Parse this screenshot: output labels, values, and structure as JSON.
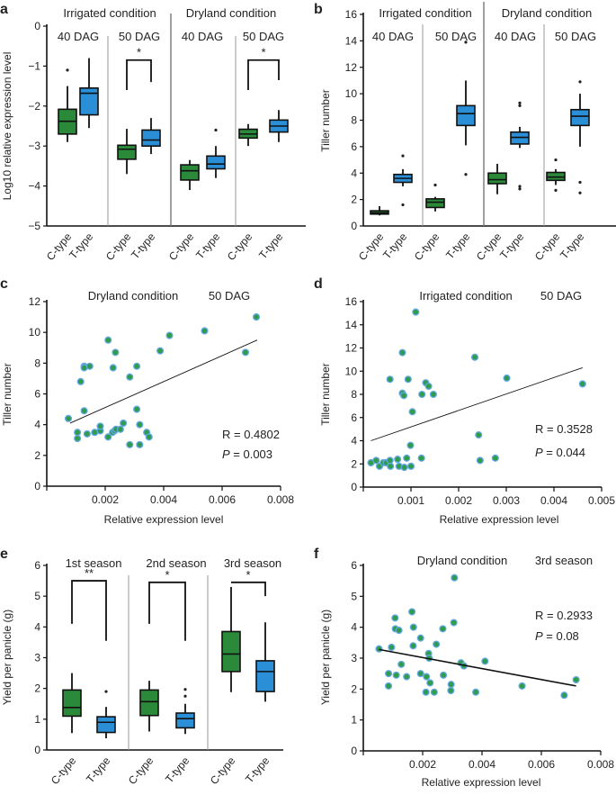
{
  "colors": {
    "c_type": "#2b8a3a",
    "t_type": "#2a8fd6",
    "point_fill": "#2e9c48",
    "point_edge": "#64a8e6"
  },
  "chart_data": [
    {
      "panel": "a",
      "type": "box",
      "ylabel": "Log10 relative expression level",
      "ylim": [
        -5,
        0
      ],
      "yticks": [
        0,
        -1,
        -2,
        -3,
        -4,
        -5
      ],
      "conditions": [
        "Irrigated condition",
        "Dryland condition"
      ],
      "stages": [
        "40 DAG",
        "50 DAG",
        "40 DAG",
        "50 DAG"
      ],
      "categories": [
        "C-type",
        "T-type",
        "C-type",
        "T-type",
        "C-type",
        "T-type",
        "C-type",
        "T-type"
      ],
      "boxes": [
        {
          "type": "C",
          "whisker_low": -2.9,
          "q1": -2.7,
          "median": -2.38,
          "q3": -2.08,
          "whisker_high": -1.5,
          "outliers": [
            -1.1
          ]
        },
        {
          "type": "T",
          "whisker_low": -2.55,
          "q1": -2.22,
          "median": -1.68,
          "q3": -1.55,
          "whisker_high": -0.8,
          "outliers": []
        },
        {
          "type": "C",
          "whisker_low": -3.7,
          "q1": -3.33,
          "median": -3.08,
          "q3": -2.98,
          "whisker_high": -2.57,
          "outliers": []
        },
        {
          "type": "T",
          "whisker_low": -3.2,
          "q1": -3.0,
          "median": -2.85,
          "q3": -2.6,
          "whisker_high": -2.3,
          "outliers": []
        },
        {
          "type": "C",
          "whisker_low": -4.1,
          "q1": -3.85,
          "median": -3.62,
          "q3": -3.47,
          "whisker_high": -3.35,
          "outliers": []
        },
        {
          "type": "T",
          "whisker_low": -3.8,
          "q1": -3.57,
          "median": -3.45,
          "q3": -3.25,
          "whisker_high": -3.0,
          "outliers": [
            -2.6
          ]
        },
        {
          "type": "C",
          "whisker_low": -3.0,
          "q1": -2.8,
          "median": -2.7,
          "q3": -2.58,
          "whisker_high": -2.45,
          "outliers": []
        },
        {
          "type": "T",
          "whisker_low": -2.9,
          "q1": -2.65,
          "median": -2.5,
          "q3": -2.35,
          "whisker_high": -2.1,
          "outliers": []
        }
      ],
      "significance": [
        {
          "pair": [
            2,
            3
          ],
          "label": "*",
          "top": -0.85,
          "left_end": -1.6,
          "right_end": -1.4
        },
        {
          "pair": [
            6,
            7
          ],
          "label": "*",
          "top": -0.85,
          "left_end": -1.6,
          "right_end": -1.35
        }
      ]
    },
    {
      "panel": "b",
      "type": "box",
      "ylabel": "Tiller number",
      "ylim": [
        0,
        16
      ],
      "yticks": [
        0,
        2,
        4,
        6,
        8,
        10,
        12,
        14,
        16
      ],
      "conditions": [
        "Irrigated condition",
        "Dryland condition"
      ],
      "stages": [
        "40 DAG",
        "50 DAG",
        "40 DAG",
        "50 DAG"
      ],
      "categories": [
        "C-type",
        "T-type",
        "C-type",
        "T-type",
        "C-type",
        "T-type",
        "C-type",
        "T-type"
      ],
      "boxes": [
        {
          "type": "C",
          "whisker_low": 0.8,
          "q1": 0.9,
          "median": 1.0,
          "q3": 1.15,
          "whisker_high": 1.5,
          "outliers": []
        },
        {
          "type": "T",
          "whisker_low": 3.0,
          "q1": 3.3,
          "median": 3.6,
          "q3": 3.9,
          "whisker_high": 4.3,
          "outliers": [
            5.3,
            1.6
          ]
        },
        {
          "type": "C",
          "whisker_low": 1.1,
          "q1": 1.4,
          "median": 1.8,
          "q3": 2.05,
          "whisker_high": 2.2,
          "outliers": [
            3.1
          ]
        },
        {
          "type": "T",
          "whisker_low": 6.1,
          "q1": 7.6,
          "median": 8.5,
          "q3": 9.1,
          "whisker_high": 11.0,
          "outliers": [
            13.9,
            3.9
          ]
        },
        {
          "type": "C",
          "whisker_low": 2.4,
          "q1": 3.2,
          "median": 3.5,
          "q3": 4.0,
          "whisker_high": 4.7,
          "outliers": []
        },
        {
          "type": "T",
          "whisker_low": 5.9,
          "q1": 6.2,
          "median": 6.7,
          "q3": 7.1,
          "whisker_high": 7.5,
          "outliers": [
            9.1,
            9.3,
            2.8,
            3.0
          ]
        },
        {
          "type": "C",
          "whisker_low": 3.1,
          "q1": 3.45,
          "median": 3.7,
          "q3": 4.05,
          "whisker_high": 4.3,
          "outliers": [
            5.0,
            2.7
          ]
        },
        {
          "type": "T",
          "whisker_low": 6.0,
          "q1": 7.6,
          "median": 8.3,
          "q3": 8.8,
          "whisker_high": 10.0,
          "outliers": [
            10.9,
            3.3,
            2.5
          ]
        }
      ],
      "significance": []
    },
    {
      "panel": "c",
      "type": "scatter",
      "titles": [
        "Dryland condition",
        "50 DAG"
      ],
      "xlabel": "Relative expression level",
      "ylabel": "Tiller number",
      "xlim": [
        0,
        0.008
      ],
      "ylim": [
        0,
        12
      ],
      "xticks": [
        "0.002",
        "0.004",
        "0.006",
        "0.008"
      ],
      "yticks": [
        0,
        2,
        4,
        6,
        8,
        10,
        12
      ],
      "r_text": "R = 0.4802",
      "p_label": "P",
      "p_value": " = 0.003",
      "fit": [
        [
          0.0008,
          4.1
        ],
        [
          0.0072,
          9.5
        ]
      ],
      "points": [
        [
          0.00074,
          4.4
        ],
        [
          0.00105,
          3.1
        ],
        [
          0.00105,
          3.5
        ],
        [
          0.00116,
          6.8
        ],
        [
          0.00128,
          7.8
        ],
        [
          0.00128,
          7.7
        ],
        [
          0.00128,
          4.9
        ],
        [
          0.00138,
          3.4
        ],
        [
          0.00147,
          7.8
        ],
        [
          0.00164,
          3.5
        ],
        [
          0.00183,
          3.6
        ],
        [
          0.00183,
          3.9
        ],
        [
          0.0021,
          9.5
        ],
        [
          0.0021,
          3.2
        ],
        [
          0.00225,
          3.5
        ],
        [
          0.00227,
          7.7
        ],
        [
          0.00232,
          3.6
        ],
        [
          0.00235,
          8.7
        ],
        [
          0.00237,
          3.7
        ],
        [
          0.00252,
          3.7
        ],
        [
          0.00262,
          4.1
        ],
        [
          0.00284,
          7.1
        ],
        [
          0.00284,
          2.7
        ],
        [
          0.00308,
          7.8
        ],
        [
          0.00308,
          5.0
        ],
        [
          0.00318,
          4.0
        ],
        [
          0.00318,
          2.7
        ],
        [
          0.00342,
          3.5
        ],
        [
          0.0035,
          3.2
        ],
        [
          0.00388,
          8.8
        ],
        [
          0.0042,
          9.8
        ],
        [
          0.0054,
          10.1
        ],
        [
          0.0068,
          8.7
        ],
        [
          0.00717,
          11.0
        ]
      ]
    },
    {
      "panel": "d",
      "type": "scatter",
      "titles": [
        "Irrigated condition",
        "50 DAG"
      ],
      "xlabel": "Relative expression level",
      "ylabel": "Tiller number",
      "xlim": [
        0,
        0.005
      ],
      "ylim": [
        0,
        16
      ],
      "xticks": [
        "0.001",
        "0.002",
        "0.003",
        "0.004",
        "0.005"
      ],
      "yticks": [
        0,
        2,
        4,
        6,
        8,
        10,
        12,
        14,
        16
      ],
      "r_text": "R = 0.3528",
      "p_label": "P",
      "p_value": " = 0.044",
      "fit": [
        [
          0.00016,
          4.0
        ],
        [
          0.0046,
          10.3
        ]
      ],
      "points": [
        [
          0.00016,
          2.1
        ],
        [
          0.00027,
          2.3
        ],
        [
          0.00034,
          1.8
        ],
        [
          0.00042,
          2.1
        ],
        [
          0.00048,
          2.1
        ],
        [
          0.00056,
          2.3
        ],
        [
          0.00057,
          1.8
        ],
        [
          0.00056,
          9.3
        ],
        [
          0.00072,
          2.4
        ],
        [
          0.00075,
          1.8
        ],
        [
          0.00082,
          11.6
        ],
        [
          0.00082,
          8.1
        ],
        [
          0.00085,
          7.9
        ],
        [
          0.00086,
          1.7
        ],
        [
          0.00091,
          2.5
        ],
        [
          0.00094,
          9.3
        ],
        [
          0.00099,
          3.6
        ],
        [
          0.001,
          1.8
        ],
        [
          0.00103,
          6.5
        ],
        [
          0.0011,
          15.1
        ],
        [
          0.00122,
          2.5
        ],
        [
          0.00123,
          8.0
        ],
        [
          0.00131,
          9.0
        ],
        [
          0.00137,
          8.7
        ],
        [
          0.00147,
          8.0
        ],
        [
          0.00234,
          11.2
        ],
        [
          0.00242,
          4.5
        ],
        [
          0.00245,
          2.3
        ],
        [
          0.00277,
          2.5
        ],
        [
          0.00301,
          9.4
        ],
        [
          0.0046,
          8.9
        ]
      ]
    },
    {
      "panel": "e",
      "type": "box",
      "ylabel": "Yield per panicle (g)",
      "ylim": [
        0,
        6
      ],
      "yticks": [
        0,
        1,
        2,
        3,
        4,
        5,
        6
      ],
      "conditions": [],
      "stages": [
        "1st season",
        "2nd season",
        "3rd season"
      ],
      "categories": [
        "C-type",
        "T-type",
        "C-type",
        "T-type",
        "C-type",
        "T-type"
      ],
      "boxes": [
        {
          "type": "C",
          "whisker_low": 0.55,
          "q1": 1.1,
          "median": 1.38,
          "q3": 1.95,
          "whisker_high": 2.5,
          "outliers": []
        },
        {
          "type": "T",
          "whisker_low": 0.38,
          "q1": 0.57,
          "median": 0.9,
          "q3": 1.08,
          "whisker_high": 1.4,
          "outliers": [
            1.9
          ]
        },
        {
          "type": "C",
          "whisker_low": 0.6,
          "q1": 1.12,
          "median": 1.57,
          "q3": 1.95,
          "whisker_high": 2.25,
          "outliers": []
        },
        {
          "type": "T",
          "whisker_low": 0.52,
          "q1": 0.72,
          "median": 1.02,
          "q3": 1.2,
          "whisker_high": 1.5,
          "outliers": [
            1.75,
            1.97
          ]
        },
        {
          "type": "C",
          "whisker_low": 1.88,
          "q1": 2.55,
          "median": 3.12,
          "q3": 3.85,
          "whisker_high": 5.3,
          "outliers": []
        },
        {
          "type": "T",
          "whisker_low": 1.57,
          "q1": 1.9,
          "median": 2.55,
          "q3": 2.9,
          "whisker_high": 4.15,
          "outliers": []
        }
      ],
      "significance": [
        {
          "pair": [
            0,
            1
          ],
          "label": "**",
          "top": 5.5,
          "left_end": 4.1,
          "right_end": 3.55
        },
        {
          "pair": [
            2,
            3
          ],
          "label": "*",
          "top": 5.45,
          "left_end": 4.1,
          "right_end": 3.55
        },
        {
          "pair": [
            4,
            5
          ],
          "label": "*",
          "top": 5.45,
          "left_end": 5.45,
          "right_end": 5.0
        }
      ]
    },
    {
      "panel": "f",
      "type": "scatter",
      "titles": [
        "Dryland condition",
        "3rd season"
      ],
      "xlabel": "Relative expression level",
      "ylabel": "Yield per panicle (g)",
      "xlim": [
        0,
        0.008
      ],
      "ylim": [
        0,
        6
      ],
      "xticks": [
        "0.002",
        "0.004",
        "0.006",
        "0.008"
      ],
      "yticks": [
        0,
        1,
        2,
        3,
        4,
        5,
        6
      ],
      "r_text": "R = 0.2933",
      "p_label": "P",
      "p_value": " = 0.08",
      "fit": [
        [
          0.00053,
          3.28
        ],
        [
          0.00717,
          2.1
        ]
      ],
      "points": [
        [
          0.00053,
          3.3
        ],
        [
          0.00085,
          2.5
        ],
        [
          0.00085,
          2.1
        ],
        [
          0.00095,
          3.35
        ],
        [
          0.00107,
          4.3
        ],
        [
          0.00108,
          3.95
        ],
        [
          0.00111,
          2.45
        ],
        [
          0.0012,
          3.9
        ],
        [
          0.00128,
          2.8
        ],
        [
          0.00146,
          2.4
        ],
        [
          0.00164,
          4.5
        ],
        [
          0.00168,
          3.4
        ],
        [
          0.00169,
          4.0
        ],
        [
          0.00193,
          2.5
        ],
        [
          0.00193,
          3.65
        ],
        [
          0.00211,
          1.9
        ],
        [
          0.00213,
          2.4
        ],
        [
          0.0022,
          3.15
        ],
        [
          0.00222,
          3.0
        ],
        [
          0.00225,
          2.2
        ],
        [
          0.00239,
          1.9
        ],
        [
          0.00246,
          3.45
        ],
        [
          0.00268,
          3.95
        ],
        [
          0.0027,
          2.45
        ],
        [
          0.00295,
          1.95
        ],
        [
          0.00296,
          2.15
        ],
        [
          0.00305,
          4.15
        ],
        [
          0.00307,
          5.6
        ],
        [
          0.00329,
          2.85
        ],
        [
          0.00339,
          2.75
        ],
        [
          0.00379,
          1.9
        ],
        [
          0.0041,
          2.9
        ],
        [
          0.00535,
          2.1
        ],
        [
          0.00677,
          1.8
        ],
        [
          0.00717,
          2.3
        ]
      ]
    }
  ]
}
